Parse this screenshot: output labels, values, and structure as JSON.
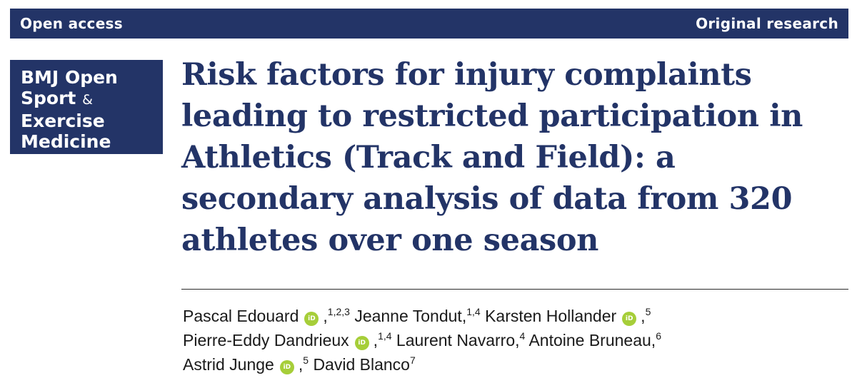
{
  "header": {
    "left_label": "Open access",
    "right_label": "Original research"
  },
  "journal": {
    "line1": "BMJ Open",
    "line2_word": "Sport",
    "line2_amp": "&",
    "line3": "Exercise",
    "line4": "Medicine"
  },
  "title": "Risk factors for injury complaints leading to restricted participation in Athletics (Track and Field): a secondary analysis of data from 320 athletes over one season",
  "authors": [
    {
      "name": "Pascal Edouard",
      "orcid": true,
      "affiliations": "1,2,3"
    },
    {
      "name": "Jeanne Tondut",
      "orcid": false,
      "affiliations": "1,4"
    },
    {
      "name": "Karsten Hollander",
      "orcid": true,
      "affiliations": "5"
    },
    {
      "name": "Pierre-Eddy Dandrieux",
      "orcid": true,
      "affiliations": "1,4"
    },
    {
      "name": "Laurent Navarro",
      "orcid": false,
      "affiliations": "4"
    },
    {
      "name": "Antoine Bruneau",
      "orcid": false,
      "affiliations": "6"
    },
    {
      "name": "Astrid Junge",
      "orcid": true,
      "affiliations": "5"
    },
    {
      "name": "David Blanco",
      "orcid": false,
      "affiliations": "7"
    }
  ],
  "orcid_icon_text": "iD",
  "colors": {
    "brand_navy": "#233467",
    "orcid_green": "#a6ce39",
    "text": "#1a1a1a"
  }
}
